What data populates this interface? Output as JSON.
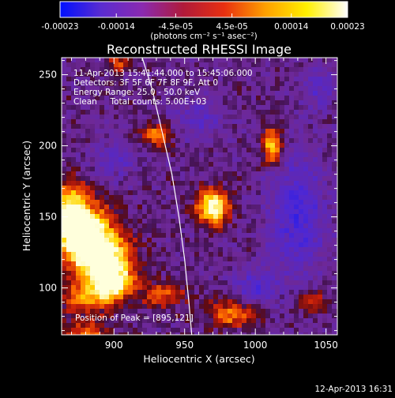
{
  "colorbar": {
    "tick_labels": [
      "-0.00023",
      "-0.00014",
      "-4.5e-05",
      "4.5e-05",
      "0.00014",
      "0.00023"
    ],
    "tick_values": [
      -0.00023,
      -0.00014,
      -4.5e-05,
      4.5e-05,
      0.00014,
      0.00023
    ],
    "range": [
      -0.00023,
      0.00023
    ],
    "units": "(photons cm⁻² s⁻¹ asec⁻²)",
    "colors": [
      "#0010ff",
      "#5a2cd0",
      "#8a2ab0",
      "#b01a3a",
      "#e83010",
      "#ffa000",
      "#fff000",
      "#ffffff"
    ]
  },
  "chart_data": {
    "type": "heatmap",
    "title": "Reconstructed RHESSI Image",
    "xlabel": "Heliocentric X (arcsec)",
    "ylabel": "Heliocentric Y (arcsec)",
    "xlim": [
      863,
      1058
    ],
    "ylim": [
      67,
      262
    ],
    "x_ticks": [
      900,
      950,
      1000,
      1050
    ],
    "y_ticks": [
      100,
      150,
      200,
      250
    ],
    "annotations": [
      "11-Apr-2013 15:41:44.000 to 15:45:06.000",
      "Detectors: 3F 5F 6F 7F 8F 9F, Att 0",
      "Energy Range: 25.0 - 50.0 keV",
      "Clean     Total counts: 5.00E+03"
    ],
    "peak_text": "Position of Peak = [895,121]",
    "limb_curve": [
      [
        920,
        262
      ],
      [
        927,
        240
      ],
      [
        934,
        210
      ],
      [
        941,
        180
      ],
      [
        946,
        150
      ],
      [
        950,
        120
      ],
      [
        953,
        90
      ],
      [
        955,
        67
      ]
    ],
    "sources": [
      {
        "x": 893,
        "y": 122,
        "sx": 14,
        "sy": 14,
        "a": 1.0
      },
      {
        "x": 880,
        "y": 140,
        "sx": 12,
        "sy": 18,
        "a": 0.85
      },
      {
        "x": 868,
        "y": 150,
        "sx": 8,
        "sy": 16,
        "a": 0.8
      },
      {
        "x": 900,
        "y": 103,
        "sx": 10,
        "sy": 8,
        "a": 0.8
      },
      {
        "x": 935,
        "y": 95,
        "sx": 10,
        "sy": 6,
        "a": 0.55
      },
      {
        "x": 880,
        "y": 92,
        "sx": 14,
        "sy": 8,
        "a": 0.55
      },
      {
        "x": 970,
        "y": 157,
        "sx": 8,
        "sy": 9,
        "a": 1.05
      },
      {
        "x": 1012,
        "y": 200,
        "sx": 5,
        "sy": 9,
        "a": 0.85
      },
      {
        "x": 985,
        "y": 82,
        "sx": 14,
        "sy": 7,
        "a": 0.6
      },
      {
        "x": 930,
        "y": 208,
        "sx": 7,
        "sy": 6,
        "a": 0.6
      },
      {
        "x": 1040,
        "y": 90,
        "sx": 8,
        "sy": 6,
        "a": 0.45
      },
      {
        "x": 903,
        "y": 258,
        "sx": 5,
        "sy": 4,
        "a": 0.5
      },
      {
        "x": 880,
        "y": 68,
        "sx": 12,
        "sy": 6,
        "a": 0.5
      }
    ],
    "negatives": [
      {
        "x": 1030,
        "y": 150,
        "sx": 14,
        "sy": 30,
        "a": 0.5
      },
      {
        "x": 1000,
        "y": 100,
        "sx": 10,
        "sy": 10,
        "a": 0.4
      },
      {
        "x": 900,
        "y": 190,
        "sx": 10,
        "sy": 10,
        "a": 0.3
      },
      {
        "x": 960,
        "y": 220,
        "sx": 12,
        "sy": 10,
        "a": 0.3
      },
      {
        "x": 1045,
        "y": 240,
        "sx": 8,
        "sy": 10,
        "a": 0.35
      }
    ]
  },
  "footer": {
    "timestamp": "12-Apr-2013 16:31"
  }
}
